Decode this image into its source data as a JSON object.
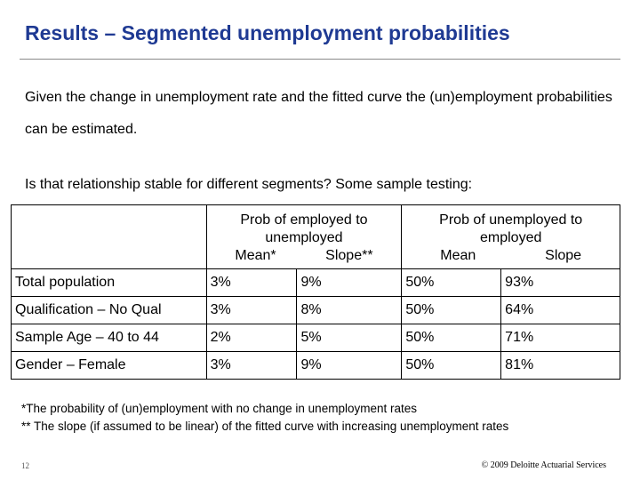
{
  "title": "Results – Segmented unemployment probabilities",
  "intro": "Given the change in unemployment rate and the fitted curve the (un)employment probabilities can be estimated.",
  "question": "Is that relationship stable for different segments? Some sample testing:",
  "table": {
    "group1": "Prob of employed to unemployed",
    "group2": "Prob of unemployed to employed",
    "g1_mean": "Mean*",
    "g1_slope": "Slope**",
    "g2_mean": "Mean",
    "g2_slope": "Slope",
    "rows": [
      {
        "label": "Total population",
        "m1": "3%",
        "s1": "9%",
        "m2": "50%",
        "s2": "93%"
      },
      {
        "label": "Qualification – No Qual",
        "m1": "3%",
        "s1": "8%",
        "m2": "50%",
        "s2": "64%"
      },
      {
        "label": "Sample Age – 40 to 44",
        "m1": "2%",
        "s1": "5%",
        "m2": "50%",
        "s2": "71%"
      },
      {
        "label": "Gender – Female",
        "m1": "3%",
        "s1": "9%",
        "m2": "50%",
        "s2": "81%"
      }
    ]
  },
  "footnote1": "*The probability of (un)employment with no change in unemployment rates",
  "footnote2": "** The slope (if assumed to be linear) of the fitted curve with increasing unemployment rates",
  "page_number": "12",
  "copyright": "© 2009 Deloitte Actuarial Services"
}
